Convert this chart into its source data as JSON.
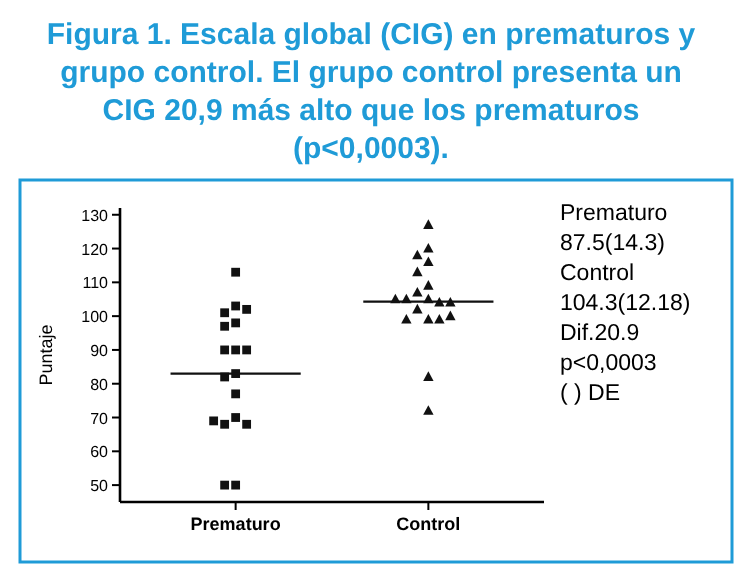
{
  "chart_data": {
    "type": "scatter",
    "title": "Figura 1. Escala global (CIG) en prematuros y grupo control. El grupo control presenta un CIG 20,9 más alto que los prematuros (p<0,0003).",
    "ylabel": "Puntaje",
    "categories": [
      "Prematuro",
      "Control"
    ],
    "series": [
      {
        "marker": "square",
        "color": "#111111",
        "x": [
          "Prematuro",
          "Prematuro",
          "Prematuro",
          "Prematuro",
          "Prematuro",
          "Prematuro",
          "Prematuro",
          "Prematuro",
          "Prematuro",
          "Prematuro",
          "Prematuro",
          "Prematuro",
          "Prematuro",
          "Prematuro",
          "Prematuro",
          "Prematuro",
          "Prematuro",
          "Prematuro"
        ],
        "values": [
          113,
          103,
          101,
          102,
          98,
          97,
          90,
          90,
          90,
          83,
          82,
          77,
          70,
          68,
          68,
          69,
          50,
          50
        ]
      },
      {
        "marker": "triangle",
        "color": "#111111",
        "x": [
          "Control",
          "Control",
          "Control",
          "Control",
          "Control",
          "Control",
          "Control",
          "Control",
          "Control",
          "Control",
          "Control",
          "Control",
          "Control",
          "Control",
          "Control",
          "Control",
          "Control",
          "Control",
          "Control"
        ],
        "values": [
          127,
          120,
          118,
          116,
          113,
          109,
          107,
          105,
          104,
          105,
          104,
          105,
          102,
          99,
          99,
          99,
          100,
          82,
          72
        ]
      },
      {
        "type": "box",
        "color": "#111111",
        "boxes": [
          {
            "low": 83,
            "q1": 83,
            "median": 83,
            "q3": 83,
            "high": 83
          },
          {
            "low": 104.3,
            "q1": 104.3,
            "median": 104.3,
            "q3": 104.3,
            "high": 104.3
          }
        ]
      }
    ],
    "ylim": [
      45,
      132
    ],
    "yticks": [
      50,
      60,
      70,
      80,
      90,
      100,
      110,
      120,
      130
    ],
    "grid": false,
    "annotations": [
      "Prematuro",
      "87.5(14.3)",
      "Control",
      "104.3(12.18)",
      "Dif.20.9",
      "p<0,0003",
      "( ) DE"
    ]
  }
}
